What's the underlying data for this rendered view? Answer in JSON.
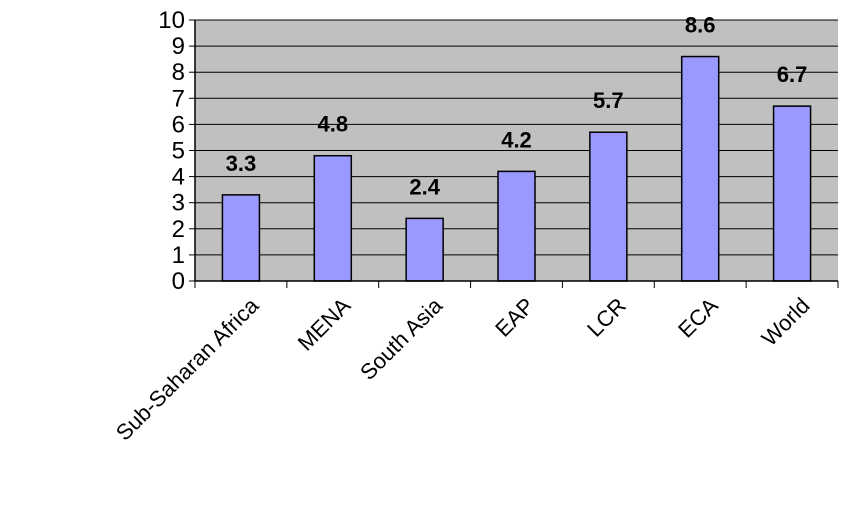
{
  "chart_data": {
    "type": "bar",
    "title": "",
    "xlabel": "",
    "ylabel": "",
    "categories": [
      "Sub-Saharan Africa",
      "MENA",
      "South Asia",
      "EAP",
      "LCR",
      "ECA",
      "World"
    ],
    "values": [
      3.3,
      4.8,
      2.4,
      4.2,
      5.7,
      8.6,
      6.7
    ],
    "data_labels": [
      "3.3",
      "4.8",
      "2.4",
      "4.2",
      "5.7",
      "8.6",
      "6.7"
    ],
    "ylim": [
      0,
      10
    ],
    "yticks": [
      "0",
      "1",
      "2",
      "3",
      "4",
      "5",
      "6",
      "7",
      "8",
      "9",
      "10"
    ],
    "grid": true,
    "legend": "none",
    "colors": {
      "plot_background": "#c0c0c0",
      "bar_fill": "#9999ff",
      "bar_stroke": "#000000",
      "gridline": "#000000"
    }
  }
}
